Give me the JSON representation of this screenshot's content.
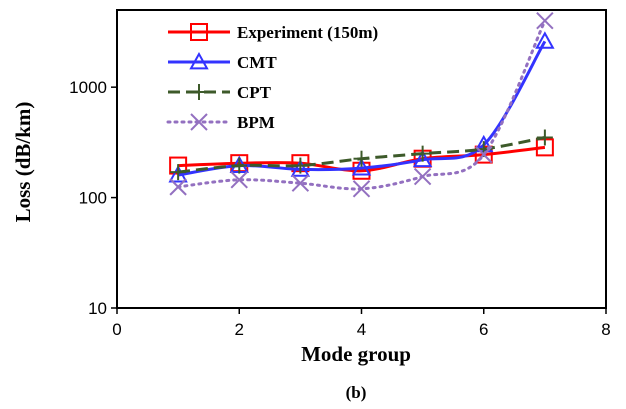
{
  "chart_data": {
    "type": "line",
    "xlabel": "Mode group",
    "ylabel": "Loss (dB/km)",
    "caption": "(b)",
    "xlim": [
      0,
      8
    ],
    "ylim": [
      10,
      5000
    ],
    "y_scale": "log",
    "x_ticks": [
      "0",
      "2",
      "4",
      "6",
      "8"
    ],
    "y_ticks": [
      "10",
      "100",
      "1000"
    ],
    "x_tick_values": [
      0,
      2,
      4,
      6,
      8
    ],
    "y_tick_values": [
      10,
      100,
      1000
    ],
    "grid": false,
    "legend_position": "top-left",
    "series": [
      {
        "name": "Experiment (150m)",
        "color": "#ff0000",
        "line_style": "solid",
        "marker": "square",
        "x": [
          1,
          2,
          3,
          4,
          5,
          6,
          7
        ],
        "values": [
          195,
          205,
          205,
          175,
          225,
          245,
          285
        ]
      },
      {
        "name": "CMT",
        "color": "#3333ff",
        "line_style": "solid",
        "marker": "triangle",
        "x": [
          1,
          2,
          3,
          4,
          5,
          6,
          7
        ],
        "values": [
          160,
          195,
          180,
          185,
          220,
          300,
          2600
        ]
      },
      {
        "name": "CPT",
        "color": "#3d5a2a",
        "line_style": "dashed",
        "marker": "plus",
        "x": [
          1,
          2,
          3,
          4,
          5,
          6,
          7
        ],
        "values": [
          170,
          195,
          195,
          225,
          250,
          275,
          350
        ]
      },
      {
        "name": "BPM",
        "color": "#9370c0",
        "line_style": "dotted",
        "marker": "x",
        "x": [
          1,
          2,
          3,
          4,
          5,
          6,
          7
        ],
        "values": [
          125,
          145,
          135,
          120,
          155,
          245,
          4000
        ]
      }
    ]
  }
}
